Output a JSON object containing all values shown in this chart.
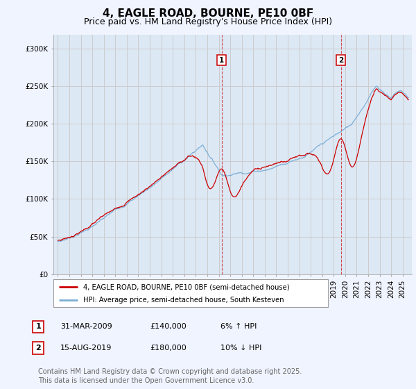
{
  "title": "4, EAGLE ROAD, BOURNE, PE10 0BF",
  "subtitle": "Price paid vs. HM Land Registry's House Price Index (HPI)",
  "ylabel_ticks": [
    "£0",
    "£50K",
    "£100K",
    "£150K",
    "£200K",
    "£250K",
    "£300K"
  ],
  "ytick_vals": [
    0,
    50000,
    100000,
    150000,
    200000,
    250000,
    300000
  ],
  "ylim": [
    0,
    318000
  ],
  "xlim_start": 1994.6,
  "xlim_end": 2025.8,
  "sale1_date": 2009.25,
  "sale1_price": 140000,
  "sale1_label": "1",
  "sale2_date": 2019.625,
  "sale2_price": 180000,
  "sale2_label": "2",
  "line1_color": "#cc0000",
  "line2_color": "#7aadd4",
  "vline_color": "#cc0000",
  "grid_color": "#cccccc",
  "bg_color": "#f0f4ff",
  "plot_bg": "#dde8f5",
  "legend_line1": "4, EAGLE ROAD, BOURNE, PE10 0BF (semi-detached house)",
  "legend_line2": "HPI: Average price, semi-detached house, South Kesteven",
  "footer": "Contains HM Land Registry data © Crown copyright and database right 2025.\nThis data is licensed under the Open Government Licence v3.0.",
  "title_fontsize": 11,
  "subtitle_fontsize": 9,
  "tick_fontsize": 7.5,
  "footer_fontsize": 7,
  "ann1_date": "31-MAR-2009",
  "ann1_price": "£140,000",
  "ann1_pct": "6% ↑ HPI",
  "ann2_date": "15-AUG-2019",
  "ann2_price": "£180,000",
  "ann2_pct": "10% ↓ HPI"
}
